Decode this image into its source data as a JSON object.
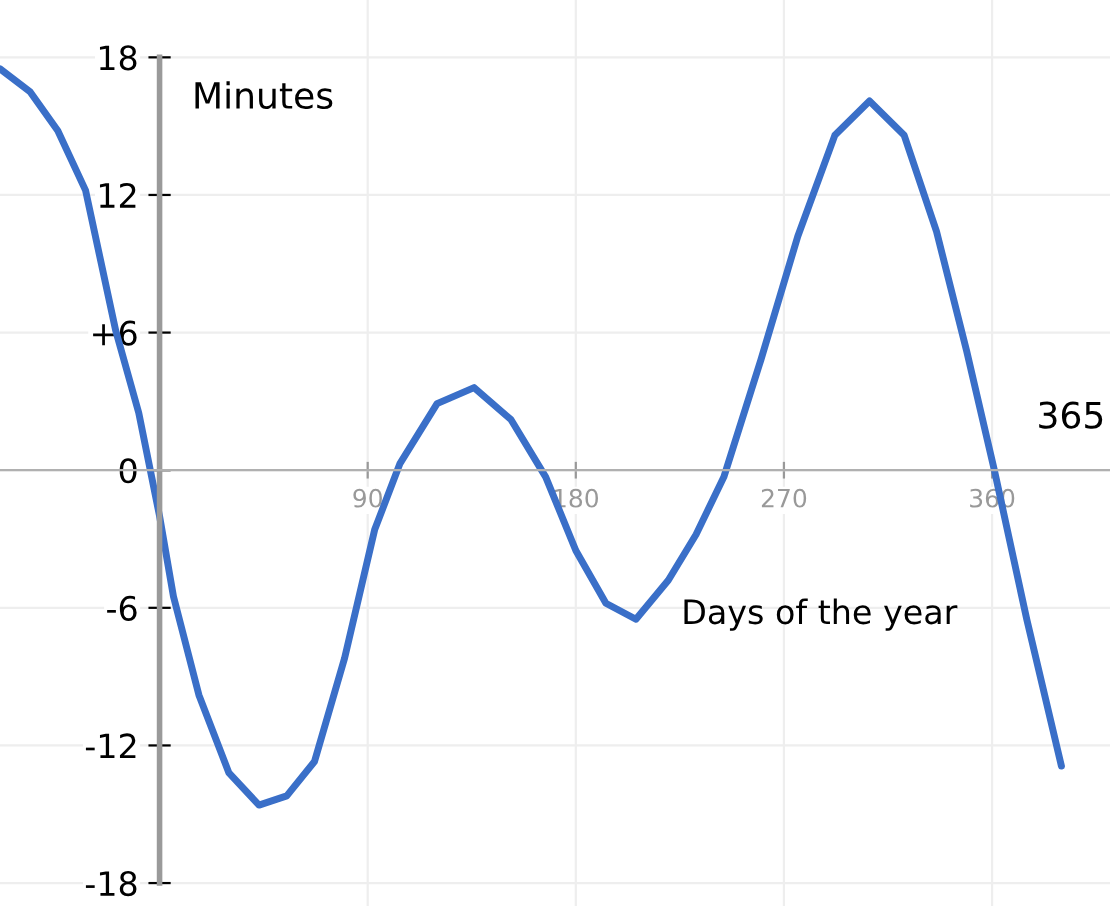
{
  "chart_data": {
    "type": "line",
    "xlabel": "Days of the year",
    "ylabel": "Minutes",
    "annotations": [
      "365"
    ],
    "xlim": [
      -69,
      411
    ],
    "ylim": [
      -19,
      20.5
    ],
    "xticks": [
      90,
      180,
      270,
      360
    ],
    "yticks": [
      -18,
      -12,
      -6,
      0,
      {
        "value": 6,
        "label": "+6"
      },
      12,
      18
    ],
    "grid": true,
    "marker": "none",
    "line_style": "solid",
    "series": [
      {
        "color": "#3a6fc8",
        "x": [
          -69,
          -56,
          -44,
          -32,
          -19,
          -9,
          0,
          6,
          17,
          30,
          43,
          55,
          67,
          80,
          93,
          104,
          120,
          136,
          152,
          167,
          180,
          193,
          206,
          220,
          232,
          244,
          260,
          276,
          292,
          307,
          322,
          336,
          349,
          361,
          375,
          390
        ],
        "values": [
          17.5,
          16.5,
          14.8,
          12.2,
          6.1,
          2.5,
          -2,
          -5.5,
          -9.8,
          -13.2,
          -14.6,
          -14.2,
          -12.7,
          -8.2,
          -2.6,
          0.3,
          2.9,
          3.6,
          2.2,
          -0.3,
          -3.5,
          -5.8,
          -6.5,
          -4.8,
          -2.8,
          -0.3,
          4.8,
          10.2,
          14.6,
          16.1,
          14.6,
          10.4,
          5.2,
          0,
          -6.5,
          -12.9
        ]
      }
    ]
  }
}
